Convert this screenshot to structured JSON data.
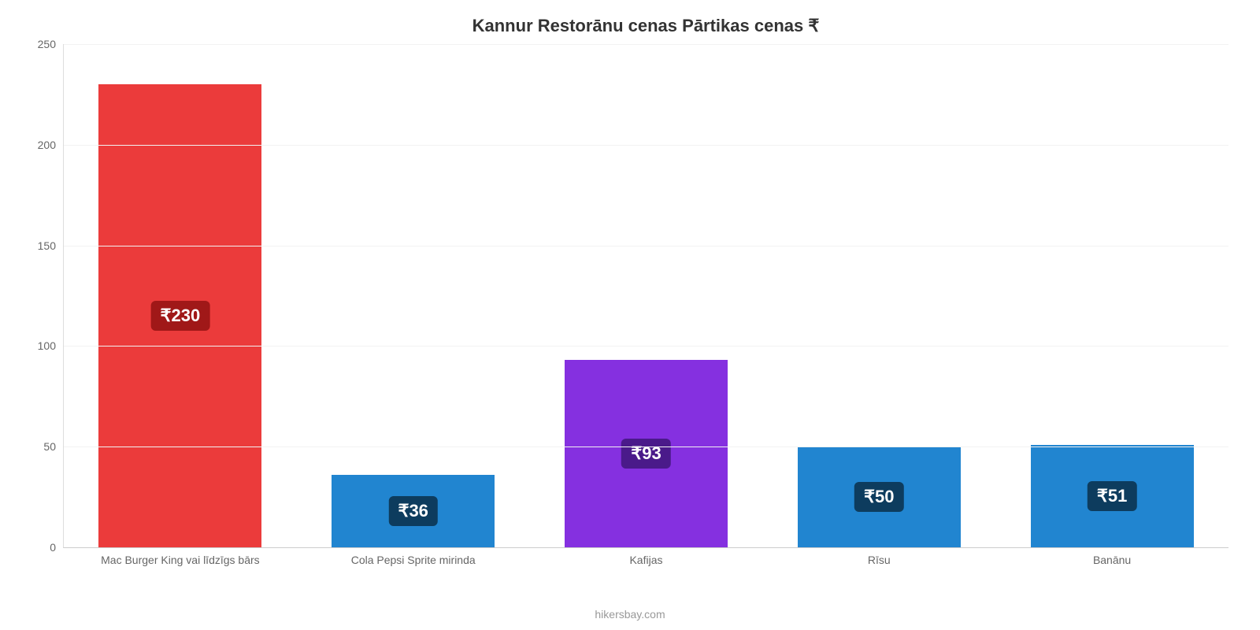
{
  "chart": {
    "type": "bar",
    "title": "Kannur Restorānu cenas Pārtikas cenas ₹",
    "title_fontsize": 22,
    "title_color": "#333333",
    "currency_symbol": "₹",
    "attribution": "hikersbay.com",
    "attribution_color": "#999999",
    "background_color": "#ffffff",
    "grid_color": "#f2f2f2",
    "axis_color": "#cccccc",
    "ylim": [
      0,
      250
    ],
    "ytick_step": 50,
    "tick_label_color": "#666666",
    "tick_label_fontsize": 14,
    "xlabel_fontsize": 14,
    "bar_width_pct": 70,
    "value_label_fontsize": 22,
    "value_label_text_color": "#ffffff",
    "value_badge_radius": 6,
    "categories": [
      "Mac Burger King vai līdzīgs bārs",
      "Cola Pepsi Sprite mirinda",
      "Kafijas",
      "Rīsu",
      "Banānu"
    ],
    "values": [
      230,
      36,
      93,
      50,
      51
    ],
    "value_labels": [
      "₹230",
      "₹36",
      "₹93",
      "₹50",
      "₹51"
    ],
    "bar_colors": [
      "#eb3b3b",
      "#2185d0",
      "#8530e0",
      "#2185d0",
      "#2185d0"
    ],
    "value_badge_colors": [
      "#a01818",
      "#0d3c5e",
      "#4a1a8a",
      "#0d3c5e",
      "#0d3c5e"
    ]
  }
}
